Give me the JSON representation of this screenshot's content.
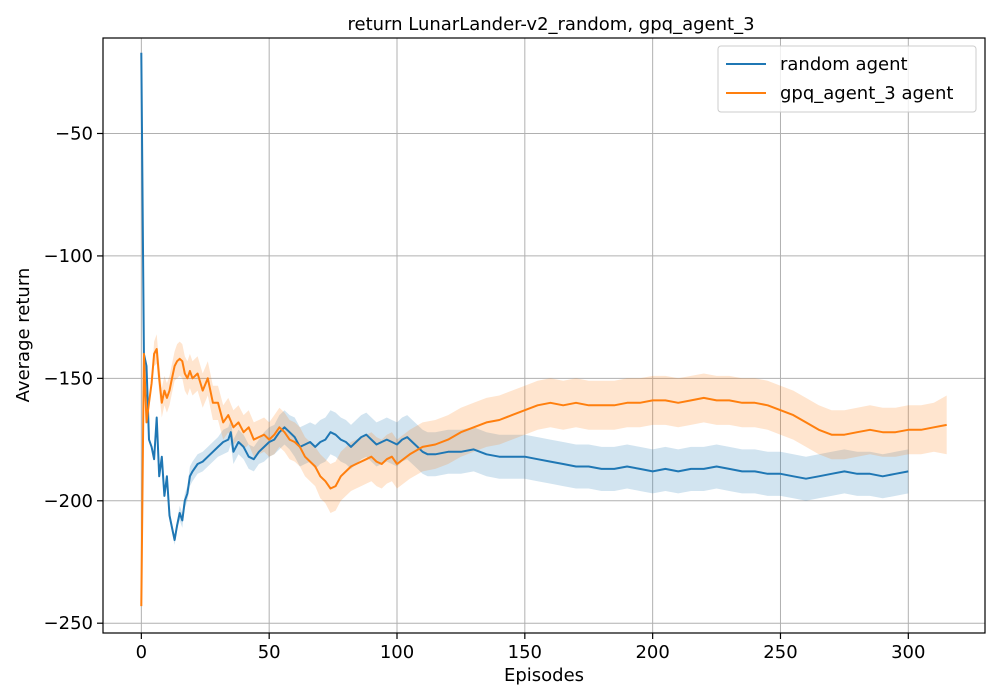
{
  "chart_data": {
    "type": "line",
    "title": "return LunarLander-v2_random, gpq_agent_3",
    "xlabel": "Episodes",
    "ylabel": "Average return",
    "xlim": [
      -15,
      330
    ],
    "ylim": [
      -254,
      -11
    ],
    "xticks": [
      0,
      50,
      100,
      150,
      200,
      250,
      300
    ],
    "yticks": [
      -250,
      -200,
      -150,
      -100,
      -50
    ],
    "grid": true,
    "legend_position": "top-right",
    "series": [
      {
        "name": "random agent",
        "color": "#1f77b4",
        "band_color": "#1f77b4",
        "x": [
          0,
          1,
          2,
          3,
          4,
          5,
          6,
          7,
          8,
          9,
          10,
          11,
          12,
          13,
          14,
          15,
          16,
          17,
          18,
          19,
          20,
          22,
          24,
          26,
          28,
          30,
          32,
          34,
          35,
          36,
          38,
          40,
          42,
          44,
          46,
          48,
          50,
          52,
          54,
          56,
          58,
          60,
          62,
          64,
          66,
          68,
          70,
          72,
          74,
          76,
          78,
          80,
          82,
          84,
          86,
          88,
          90,
          92,
          94,
          96,
          98,
          100,
          102,
          104,
          106,
          108,
          110,
          112,
          115,
          120,
          125,
          130,
          135,
          140,
          145,
          150,
          155,
          160,
          165,
          170,
          175,
          180,
          185,
          190,
          195,
          200,
          205,
          210,
          215,
          220,
          225,
          230,
          235,
          240,
          245,
          250,
          255,
          260,
          265,
          270,
          275,
          280,
          285,
          290,
          295,
          300
        ],
        "values": [
          -17,
          -140,
          -145,
          -175,
          -178,
          -183,
          -166,
          -190,
          -182,
          -198,
          -190,
          -206,
          -211,
          -216,
          -210,
          -205,
          -208,
          -200,
          -197,
          -190,
          -188,
          -185,
          -184,
          -182,
          -180,
          -178,
          -176,
          -175,
          -172,
          -180,
          -176,
          -178,
          -182,
          -183,
          -180,
          -178,
          -176,
          -175,
          -172,
          -170,
          -172,
          -174,
          -178,
          -177,
          -176,
          -178,
          -176,
          -175,
          -172,
          -173,
          -175,
          -176,
          -178,
          -176,
          -174,
          -173,
          -175,
          -177,
          -176,
          -175,
          -176,
          -177,
          -175,
          -174,
          -176,
          -178,
          -180,
          -181,
          -181,
          -180,
          -180,
          -179,
          -181,
          -182,
          -182,
          -182,
          -183,
          -184,
          -185,
          -186,
          -186,
          -187,
          -187,
          -186,
          -187,
          -188,
          -187,
          -188,
          -187,
          -187,
          -186,
          -187,
          -188,
          -188,
          -189,
          -189,
          -190,
          -191,
          -190,
          -189,
          -188,
          -189,
          -189,
          -190,
          -189,
          -188
        ],
        "band_width": [
          0,
          0,
          0,
          0,
          0,
          0,
          0,
          0,
          0,
          0,
          0,
          2,
          2,
          2,
          2,
          3,
          3,
          3,
          3,
          4,
          4,
          4,
          4,
          4,
          4,
          4,
          5,
          5,
          5,
          5,
          5,
          5,
          5,
          5,
          5,
          6,
          6,
          6,
          7,
          7,
          7,
          8,
          8,
          8,
          8,
          9,
          9,
          9,
          9,
          9,
          9,
          9,
          9,
          9,
          9,
          9,
          9,
          9,
          9,
          9,
          9,
          9,
          9,
          9,
          9,
          9,
          9,
          9,
          9,
          9,
          9,
          9,
          9,
          9,
          9,
          9,
          9,
          9,
          9,
          9,
          9,
          9,
          9,
          9,
          9,
          9,
          9,
          9,
          9,
          9,
          9,
          9,
          9,
          9,
          9,
          9,
          9,
          9,
          9,
          9,
          9,
          9,
          9,
          9,
          9,
          9
        ]
      },
      {
        "name": "gpq_agent_3 agent",
        "color": "#ff7f0e",
        "band_color": "#ff7f0e",
        "x": [
          0,
          1,
          2,
          3,
          4,
          5,
          6,
          7,
          8,
          9,
          10,
          11,
          12,
          13,
          14,
          15,
          16,
          17,
          18,
          19,
          20,
          22,
          24,
          26,
          28,
          30,
          32,
          34,
          36,
          38,
          40,
          42,
          44,
          46,
          48,
          50,
          52,
          54,
          56,
          58,
          60,
          62,
          64,
          66,
          68,
          70,
          72,
          74,
          76,
          78,
          80,
          82,
          84,
          86,
          88,
          90,
          92,
          94,
          96,
          98,
          100,
          105,
          110,
          115,
          120,
          125,
          130,
          135,
          140,
          145,
          150,
          155,
          160,
          165,
          170,
          175,
          180,
          185,
          190,
          195,
          200,
          205,
          210,
          215,
          220,
          225,
          230,
          235,
          240,
          245,
          250,
          255,
          260,
          265,
          270,
          275,
          280,
          285,
          290,
          295,
          300,
          305,
          310,
          315
        ],
        "values": [
          -243,
          -140,
          -168,
          -160,
          -152,
          -140,
          -138,
          -150,
          -160,
          -155,
          -158,
          -155,
          -150,
          -145,
          -143,
          -142,
          -143,
          -148,
          -150,
          -147,
          -150,
          -148,
          -155,
          -150,
          -160,
          -160,
          -168,
          -165,
          -170,
          -168,
          -172,
          -170,
          -175,
          -174,
          -173,
          -175,
          -173,
          -170,
          -172,
          -175,
          -176,
          -178,
          -182,
          -184,
          -186,
          -190,
          -192,
          -195,
          -194,
          -190,
          -188,
          -186,
          -185,
          -184,
          -183,
          -182,
          -184,
          -185,
          -183,
          -182,
          -185,
          -181,
          -178,
          -177,
          -175,
          -172,
          -170,
          -168,
          -167,
          -165,
          -163,
          -161,
          -160,
          -161,
          -160,
          -161,
          -161,
          -161,
          -160,
          -160,
          -159,
          -159,
          -160,
          -159,
          -158,
          -159,
          -159,
          -160,
          -160,
          -161,
          -163,
          -165,
          -168,
          -171,
          -173,
          -173,
          -172,
          -171,
          -172,
          -172,
          -171,
          -171,
          -170,
          -169
        ],
        "band_width": [
          0,
          0,
          0,
          0,
          0,
          5,
          6,
          6,
          6,
          6,
          6,
          6,
          6,
          6,
          7,
          7,
          7,
          7,
          7,
          7,
          7,
          7,
          7,
          7,
          7,
          7,
          7,
          7,
          7,
          7,
          7,
          7,
          7,
          7,
          7,
          7,
          8,
          8,
          8,
          8,
          8,
          8,
          8,
          8,
          8,
          9,
          9,
          10,
          10,
          10,
          10,
          10,
          10,
          10,
          10,
          10,
          10,
          10,
          10,
          10,
          10,
          10,
          10,
          10,
          10,
          10,
          10,
          10,
          10,
          10,
          10,
          10,
          10,
          10,
          10,
          10,
          10,
          10,
          10,
          10,
          10,
          10,
          10,
          10,
          10,
          10,
          10,
          10,
          10,
          10,
          10,
          10,
          10,
          10,
          10,
          10,
          10,
          10,
          10,
          10,
          10,
          10,
          10,
          12
        ]
      }
    ]
  }
}
